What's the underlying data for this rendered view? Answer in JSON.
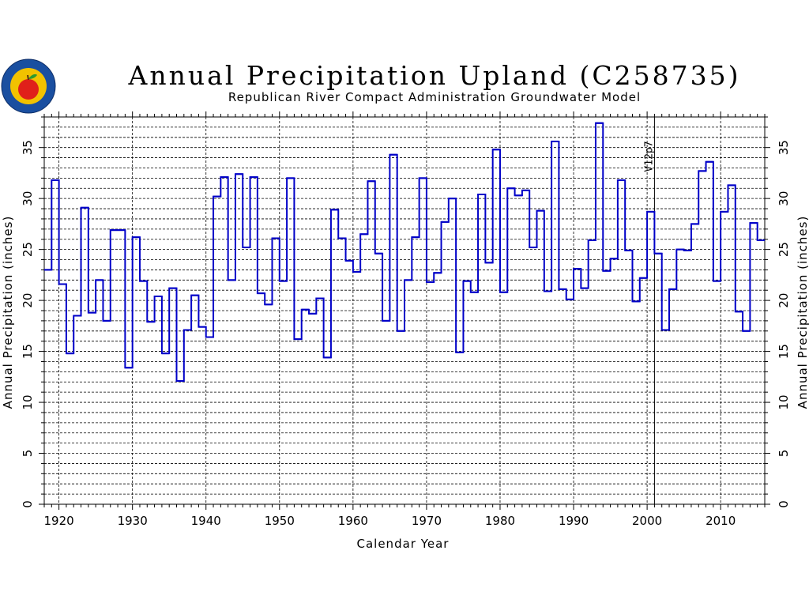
{
  "logo": {
    "icon": "apple-seal-logo",
    "colors": {
      "ring": "#1a4fa0",
      "inner": "#f2c200",
      "apple": "#e0201a",
      "leaf": "#2e9a2e"
    }
  },
  "chart_data": {
    "type": "line",
    "style": "step",
    "title": "Annual Precipitation Upland (C258735)",
    "subtitle": "Republican River Compact Administration Groundwater Model",
    "xlabel": "Calendar Year",
    "ylabel": "Annual Precipitation (inches)",
    "ylabel_right": "Annual Precipitation (inches)",
    "xlim": [
      1918,
      2016
    ],
    "ylim": [
      0,
      38
    ],
    "x_ticks": [
      1920,
      1930,
      1940,
      1950,
      1960,
      1970,
      1980,
      1990,
      2000,
      2010
    ],
    "y_ticks": [
      0,
      5,
      10,
      15,
      20,
      25,
      30,
      35
    ],
    "grid": true,
    "line_color": "#0000c8",
    "marker": {
      "x": 2001,
      "label": "V12p7"
    },
    "series": [
      {
        "x": [
          1918,
          1919,
          1920,
          1921,
          1922,
          1923,
          1924,
          1925,
          1926,
          1927,
          1928,
          1929,
          1930,
          1931,
          1932,
          1933,
          1934,
          1935,
          1936,
          1937,
          1938,
          1939,
          1940,
          1941,
          1942,
          1943,
          1944,
          1945,
          1946,
          1947,
          1948,
          1949,
          1950,
          1951,
          1952,
          1953,
          1954,
          1955,
          1956,
          1957,
          1958,
          1959,
          1960,
          1961,
          1962,
          1963,
          1964,
          1965,
          1966,
          1967,
          1968,
          1969,
          1970,
          1971,
          1972,
          1973,
          1974,
          1975,
          1976,
          1977,
          1978,
          1979,
          1980,
          1981,
          1982,
          1983,
          1984,
          1985,
          1986,
          1987,
          1988,
          1989,
          1990,
          1991,
          1992,
          1993,
          1994,
          1995,
          1996,
          1997,
          1998,
          1999,
          2000,
          2001,
          2002,
          2003,
          2004,
          2005,
          2006,
          2007,
          2008,
          2009,
          2010,
          2011,
          2012,
          2013,
          2014,
          2015
        ],
        "values": [
          23.0,
          31.8,
          21.6,
          14.8,
          18.5,
          29.1,
          18.8,
          22.0,
          18.0,
          26.9,
          26.9,
          13.4,
          26.2,
          21.9,
          17.9,
          20.4,
          14.8,
          21.2,
          12.1,
          17.1,
          20.5,
          17.4,
          16.4,
          30.2,
          32.1,
          22.0,
          32.4,
          25.2,
          32.1,
          20.7,
          19.6,
          26.1,
          21.9,
          32.0,
          16.2,
          19.1,
          18.7,
          20.2,
          14.4,
          28.9,
          26.1,
          23.9,
          22.8,
          26.5,
          31.7,
          24.6,
          18.0,
          34.3,
          17.0,
          22.0,
          26.2,
          32.0,
          21.8,
          22.7,
          27.7,
          30.0,
          14.9,
          21.9,
          20.8,
          30.4,
          23.7,
          34.8,
          20.8,
          31.0,
          30.3,
          30.8,
          25.2,
          28.8,
          20.9,
          35.6,
          21.1,
          20.1,
          23.1,
          21.2,
          25.9,
          37.4,
          22.9,
          24.1,
          31.8,
          24.9,
          19.9,
          22.2,
          28.7,
          24.6,
          17.1,
          21.1,
          25.0,
          24.9,
          27.5,
          32.7,
          33.6,
          21.9,
          28.7,
          31.3,
          18.9,
          17.0,
          27.6,
          25.9
        ]
      }
    ]
  }
}
